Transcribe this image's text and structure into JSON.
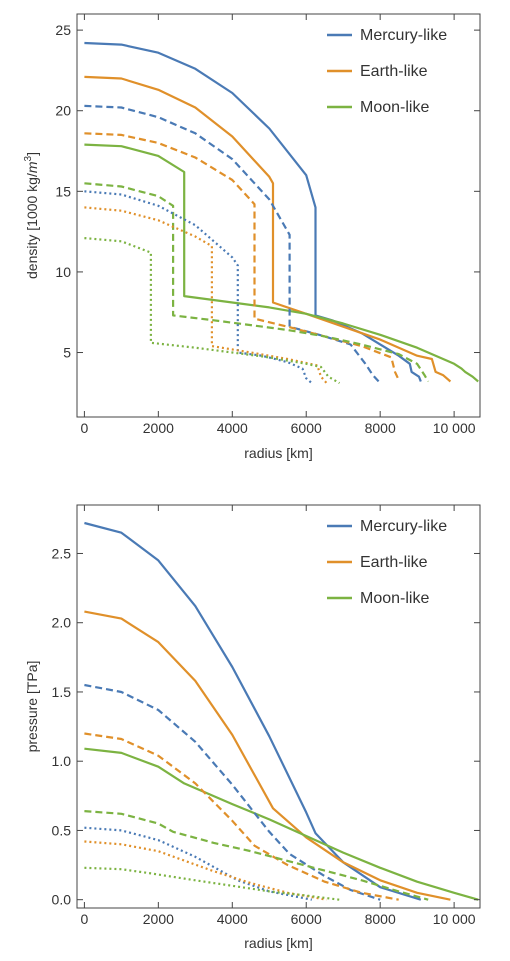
{
  "chart_data": [
    {
      "type": "line",
      "xlabel": "radius [km]",
      "ylabel": "density [1000 kg/m³]",
      "ylabel_parts": {
        "pre": "density [1000 kg/",
        "unit": "m",
        "sup": "3",
        "post": "]"
      },
      "xlim": [
        -200,
        10700
      ],
      "ylim": [
        1.0,
        26.0
      ],
      "xticks": [
        0,
        2000,
        4000,
        6000,
        8000,
        10000
      ],
      "xtick_labels": [
        "0",
        "2000",
        "4000",
        "6000",
        "8000",
        "10 000"
      ],
      "yticks": [
        5,
        10,
        15,
        20,
        25
      ],
      "ytick_labels": [
        "5",
        "10",
        "15",
        "20",
        "25"
      ],
      "grid": false,
      "legend": "top-right",
      "legend_entries": [
        "Mercury-like",
        "Earth-like",
        "Moon-like"
      ],
      "series": [
        {
          "name": "Mercury-like",
          "color": "#4a7ab5",
          "dash": "solid",
          "points": [
            [
              0,
              24.2
            ],
            [
              1000,
              24.1
            ],
            [
              2000,
              23.6
            ],
            [
              3000,
              22.6
            ],
            [
              4000,
              21.1
            ],
            [
              5000,
              18.9
            ],
            [
              6000,
              16.0
            ],
            [
              6250,
              14.0
            ],
            [
              6250,
              7.3
            ],
            [
              6700,
              7.0
            ],
            [
              7500,
              6.2
            ],
            [
              8500,
              4.8
            ],
            [
              8800,
              4.3
            ],
            [
              8850,
              3.8
            ],
            [
              9050,
              3.5
            ],
            [
              9100,
              3.2
            ]
          ]
        },
        {
          "name": "Earth-like",
          "color": "#e0902a",
          "dash": "solid",
          "points": [
            [
              0,
              22.1
            ],
            [
              1000,
              22.0
            ],
            [
              2000,
              21.3
            ],
            [
              3000,
              20.2
            ],
            [
              4000,
              18.4
            ],
            [
              5000,
              15.9
            ],
            [
              5100,
              15.5
            ],
            [
              5100,
              8.1
            ],
            [
              6000,
              7.4
            ],
            [
              7000,
              6.6
            ],
            [
              8000,
              5.8
            ],
            [
              9000,
              4.8
            ],
            [
              9400,
              4.6
            ],
            [
              9500,
              3.8
            ],
            [
              9700,
              3.6
            ],
            [
              9900,
              3.2
            ]
          ]
        },
        {
          "name": "Moon-like",
          "color": "#7cb342",
          "dash": "solid",
          "points": [
            [
              0,
              17.9
            ],
            [
              1000,
              17.8
            ],
            [
              2000,
              17.2
            ],
            [
              2700,
              16.2
            ],
            [
              2700,
              8.5
            ],
            [
              4000,
              8.1
            ],
            [
              5000,
              7.8
            ],
            [
              6000,
              7.4
            ],
            [
              7000,
              6.8
            ],
            [
              8000,
              6.1
            ],
            [
              9000,
              5.3
            ],
            [
              10000,
              4.3
            ],
            [
              10200,
              4.0
            ],
            [
              10300,
              3.8
            ],
            [
              10500,
              3.5
            ],
            [
              10650,
              3.2
            ]
          ]
        },
        {
          "name": "",
          "color": "#4a7ab5",
          "dash": "dashed",
          "points": [
            [
              0,
              20.3
            ],
            [
              1000,
              20.2
            ],
            [
              2000,
              19.6
            ],
            [
              3000,
              18.6
            ],
            [
              4000,
              17.0
            ],
            [
              5000,
              14.5
            ],
            [
              5550,
              12.3
            ],
            [
              5550,
              6.6
            ],
            [
              6500,
              6.0
            ],
            [
              7200,
              5.5
            ],
            [
              7600,
              4.3
            ],
            [
              7800,
              3.6
            ],
            [
              8000,
              3.1
            ]
          ]
        },
        {
          "name": "",
          "color": "#e0902a",
          "dash": "dashed",
          "points": [
            [
              0,
              18.6
            ],
            [
              1000,
              18.5
            ],
            [
              2000,
              18.0
            ],
            [
              3000,
              17.1
            ],
            [
              4000,
              15.7
            ],
            [
              4600,
              14.2
            ],
            [
              4600,
              7.1
            ],
            [
              5500,
              6.6
            ],
            [
              6500,
              6.0
            ],
            [
              7500,
              5.4
            ],
            [
              8300,
              4.7
            ],
            [
              8400,
              3.8
            ],
            [
              8500,
              3.3
            ]
          ]
        },
        {
          "name": "",
          "color": "#7cb342",
          "dash": "dashed",
          "points": [
            [
              0,
              15.5
            ],
            [
              1000,
              15.3
            ],
            [
              2000,
              14.7
            ],
            [
              2400,
              14.1
            ],
            [
              2400,
              7.3
            ],
            [
              3500,
              7.0
            ],
            [
              4500,
              6.7
            ],
            [
              5500,
              6.4
            ],
            [
              6500,
              6.0
            ],
            [
              7500,
              5.5
            ],
            [
              8500,
              4.9
            ],
            [
              9000,
              4.3
            ],
            [
              9200,
              3.6
            ],
            [
              9300,
              3.2
            ]
          ]
        },
        {
          "name": "",
          "color": "#4a7ab5",
          "dash": "dotted",
          "points": [
            [
              0,
              15.0
            ],
            [
              1000,
              14.8
            ],
            [
              2000,
              14.1
            ],
            [
              3000,
              12.9
            ],
            [
              4000,
              10.9
            ],
            [
              4150,
              10.4
            ],
            [
              4150,
              5.0
            ],
            [
              4800,
              4.8
            ],
            [
              5500,
              4.4
            ],
            [
              5900,
              4.0
            ],
            [
              6000,
              3.4
            ],
            [
              6150,
              3.1
            ]
          ]
        },
        {
          "name": "",
          "color": "#e0902a",
          "dash": "dotted",
          "points": [
            [
              0,
              14.0
            ],
            [
              1000,
              13.8
            ],
            [
              2000,
              13.2
            ],
            [
              3000,
              12.2
            ],
            [
              3450,
              11.6
            ],
            [
              3450,
              5.4
            ],
            [
              4500,
              5.0
            ],
            [
              5500,
              4.6
            ],
            [
              6300,
              4.2
            ],
            [
              6400,
              3.5
            ],
            [
              6550,
              3.1
            ]
          ]
        },
        {
          "name": "",
          "color": "#7cb342",
          "dash": "dotted",
          "points": [
            [
              0,
              12.1
            ],
            [
              1000,
              11.9
            ],
            [
              1800,
              11.2
            ],
            [
              1800,
              5.6
            ],
            [
              3000,
              5.3
            ],
            [
              4000,
              5.0
            ],
            [
              5000,
              4.7
            ],
            [
              6000,
              4.3
            ],
            [
              6400,
              4.1
            ],
            [
              6600,
              3.5
            ],
            [
              6900,
              3.1
            ]
          ]
        }
      ]
    },
    {
      "type": "line",
      "xlabel": "radius [km]",
      "ylabel": "pressure [TPa]",
      "xlim": [
        -200,
        10700
      ],
      "ylim": [
        -0.06,
        2.85
      ],
      "xticks": [
        0,
        2000,
        4000,
        6000,
        8000,
        10000
      ],
      "xtick_labels": [
        "0",
        "2000",
        "4000",
        "6000",
        "8000",
        "10 000"
      ],
      "yticks": [
        0.0,
        0.5,
        1.0,
        1.5,
        2.0,
        2.5
      ],
      "ytick_labels": [
        "0.0",
        "0.5",
        "1.0",
        "1.5",
        "2.0",
        "2.5"
      ],
      "grid": false,
      "legend": "top-right",
      "legend_entries": [
        "Mercury-like",
        "Earth-like",
        "Moon-like"
      ],
      "series": [
        {
          "name": "Mercury-like",
          "color": "#4a7ab5",
          "dash": "solid",
          "points": [
            [
              0,
              2.72
            ],
            [
              1000,
              2.65
            ],
            [
              2000,
              2.45
            ],
            [
              3000,
              2.12
            ],
            [
              4000,
              1.68
            ],
            [
              5000,
              1.18
            ],
            [
              6000,
              0.63
            ],
            [
              6250,
              0.48
            ],
            [
              7000,
              0.27
            ],
            [
              8000,
              0.09
            ],
            [
              9100,
              0.0
            ]
          ]
        },
        {
          "name": "Earth-like",
          "color": "#e0902a",
          "dash": "solid",
          "points": [
            [
              0,
              2.08
            ],
            [
              1000,
              2.03
            ],
            [
              2000,
              1.86
            ],
            [
              3000,
              1.58
            ],
            [
              4000,
              1.19
            ],
            [
              5100,
              0.66
            ],
            [
              6000,
              0.45
            ],
            [
              7000,
              0.27
            ],
            [
              8000,
              0.14
            ],
            [
              9000,
              0.05
            ],
            [
              9900,
              0.0
            ]
          ]
        },
        {
          "name": "Moon-like",
          "color": "#7cb342",
          "dash": "solid",
          "points": [
            [
              0,
              1.09
            ],
            [
              1000,
              1.06
            ],
            [
              2000,
              0.96
            ],
            [
              2700,
              0.84
            ],
            [
              4000,
              0.69
            ],
            [
              5000,
              0.58
            ],
            [
              6000,
              0.46
            ],
            [
              7000,
              0.34
            ],
            [
              8000,
              0.23
            ],
            [
              9000,
              0.13
            ],
            [
              10000,
              0.05
            ],
            [
              10650,
              0.0
            ]
          ]
        },
        {
          "name": "",
          "color": "#4a7ab5",
          "dash": "dashed",
          "points": [
            [
              0,
              1.55
            ],
            [
              1000,
              1.5
            ],
            [
              2000,
              1.37
            ],
            [
              3000,
              1.14
            ],
            [
              4000,
              0.83
            ],
            [
              5000,
              0.49
            ],
            [
              5550,
              0.33
            ],
            [
              6500,
              0.17
            ],
            [
              7200,
              0.07
            ],
            [
              8000,
              0.0
            ]
          ]
        },
        {
          "name": "",
          "color": "#e0902a",
          "dash": "dashed",
          "points": [
            [
              0,
              1.2
            ],
            [
              1000,
              1.16
            ],
            [
              2000,
              1.04
            ],
            [
              3000,
              0.84
            ],
            [
              4000,
              0.57
            ],
            [
              4600,
              0.39
            ],
            [
              5500,
              0.25
            ],
            [
              6500,
              0.13
            ],
            [
              7500,
              0.05
            ],
            [
              8500,
              0.0
            ]
          ]
        },
        {
          "name": "",
          "color": "#7cb342",
          "dash": "dashed",
          "points": [
            [
              0,
              0.64
            ],
            [
              1000,
              0.62
            ],
            [
              2000,
              0.55
            ],
            [
              2400,
              0.49
            ],
            [
              3500,
              0.41
            ],
            [
              4500,
              0.35
            ],
            [
              5500,
              0.28
            ],
            [
              6500,
              0.21
            ],
            [
              7500,
              0.14
            ],
            [
              8500,
              0.06
            ],
            [
              9300,
              0.0
            ]
          ]
        },
        {
          "name": "",
          "color": "#4a7ab5",
          "dash": "dotted",
          "points": [
            [
              0,
              0.52
            ],
            [
              1000,
              0.5
            ],
            [
              2000,
              0.43
            ],
            [
              3000,
              0.31
            ],
            [
              4150,
              0.14
            ],
            [
              5000,
              0.06
            ],
            [
              6150,
              0.0
            ]
          ]
        },
        {
          "name": "",
          "color": "#e0902a",
          "dash": "dotted",
          "points": [
            [
              0,
              0.42
            ],
            [
              1000,
              0.4
            ],
            [
              2000,
              0.35
            ],
            [
              3450,
              0.21
            ],
            [
              4500,
              0.12
            ],
            [
              5500,
              0.05
            ],
            [
              6550,
              0.0
            ]
          ]
        },
        {
          "name": "",
          "color": "#7cb342",
          "dash": "dotted",
          "points": [
            [
              0,
              0.23
            ],
            [
              1000,
              0.22
            ],
            [
              1800,
              0.19
            ],
            [
              3000,
              0.14
            ],
            [
              4000,
              0.1
            ],
            [
              5000,
              0.06
            ],
            [
              6000,
              0.03
            ],
            [
              6900,
              0.0
            ]
          ]
        }
      ]
    }
  ]
}
